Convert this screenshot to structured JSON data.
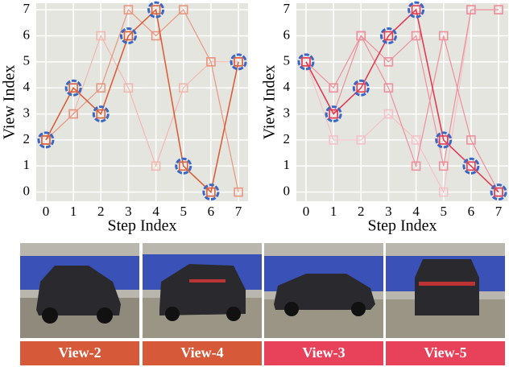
{
  "chart_data": [
    {
      "type": "line",
      "xlabel": "Step Index",
      "ylabel": "View Index",
      "x": [
        0,
        1,
        2,
        3,
        4,
        5,
        6,
        7
      ],
      "xlim": [
        -0.35,
        7.35
      ],
      "ylim": [
        -0.35,
        7.25
      ],
      "xticks": [
        0,
        1,
        2,
        3,
        4,
        5,
        6,
        7
      ],
      "yticks": [
        0,
        1,
        2,
        3,
        4,
        5,
        6,
        7
      ],
      "grid": true,
      "series": [
        {
          "color": "#f2b8ae",
          "values": [
            2,
            3,
            6,
            4,
            1,
            4,
            5,
            5
          ]
        },
        {
          "color": "#e9967f",
          "values": [
            2,
            3,
            4,
            7,
            6,
            7,
            5,
            0
          ]
        },
        {
          "color": "#d9603b",
          "values": [
            2,
            4,
            3,
            6,
            7,
            1,
            0,
            5
          ],
          "highlight": true
        }
      ]
    },
    {
      "type": "line",
      "xlabel": "Step Index",
      "ylabel": "View Index",
      "x": [
        0,
        1,
        2,
        3,
        4,
        5,
        6,
        7
      ],
      "xlim": [
        -0.35,
        7.35
      ],
      "ylim": [
        -0.35,
        7.25
      ],
      "xticks": [
        0,
        1,
        2,
        3,
        4,
        5,
        6,
        7
      ],
      "yticks": [
        0,
        1,
        2,
        3,
        4,
        5,
        6,
        7
      ],
      "grid": true,
      "series": [
        {
          "color": "#f5c0c8",
          "values": [
            5,
            2,
            2,
            3,
            2,
            0,
            7,
            7
          ]
        },
        {
          "color": "#ee8f9c",
          "values": [
            5,
            4,
            6,
            4,
            1,
            6,
            2,
            0
          ]
        },
        {
          "color": "#ee8f9c",
          "values": [
            5,
            3,
            6,
            5,
            6,
            1,
            7,
            7
          ]
        },
        {
          "color": "#e33b52",
          "values": [
            5,
            3,
            4,
            6,
            7,
            2,
            1,
            0
          ],
          "highlight": true
        }
      ]
    }
  ],
  "captions": [
    {
      "text": "View-2",
      "color": "#d65a3a"
    },
    {
      "text": "View-4",
      "color": "#d65a3a"
    },
    {
      "text": "View-3",
      "color": "#e8415a"
    },
    {
      "text": "View-5",
      "color": "#e8415a"
    }
  ]
}
